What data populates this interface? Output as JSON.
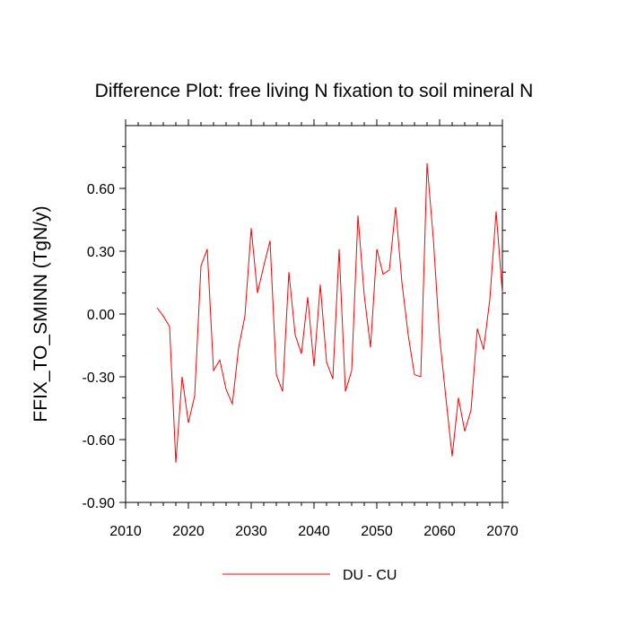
{
  "chart_data": {
    "type": "line",
    "title": "Difference Plot: free living N fixation to soil mineral N",
    "xlabel": "",
    "ylabel": "FFIX_TO_SMINN  (TgN/y)",
    "xlim": [
      2010,
      2070
    ],
    "ylim": [
      -0.9,
      0.9
    ],
    "x_ticks": [
      2010,
      2020,
      2030,
      2040,
      2050,
      2060,
      2070
    ],
    "x_tick_labels": [
      "2010",
      "2020",
      "2030",
      "2040",
      "2050",
      "2060",
      "2070"
    ],
    "y_ticks": [
      -0.9,
      -0.6,
      -0.3,
      0.0,
      0.3,
      0.6
    ],
    "y_tick_labels": [
      "-0.90",
      "-0.60",
      "-0.30",
      "0.00",
      "0.30",
      "0.60"
    ],
    "grid": false,
    "legend_position": "bottom-center",
    "series": [
      {
        "name": "DU - CU",
        "color": "#ff0000",
        "x": [
          2015,
          2016,
          2017,
          2018,
          2019,
          2020,
          2021,
          2022,
          2023,
          2024,
          2025,
          2026,
          2027,
          2028,
          2029,
          2030,
          2031,
          2032,
          2033,
          2034,
          2035,
          2036,
          2037,
          2038,
          2039,
          2040,
          2041,
          2042,
          2043,
          2044,
          2045,
          2046,
          2047,
          2048,
          2049,
          2050,
          2051,
          2052,
          2053,
          2054,
          2055,
          2056,
          2057,
          2058,
          2059,
          2060,
          2061,
          2062,
          2063,
          2064,
          2065,
          2066,
          2067,
          2068,
          2069,
          2070
        ],
        "y": [
          0.03,
          -0.01,
          -0.06,
          -0.71,
          -0.3,
          -0.52,
          -0.39,
          0.23,
          0.31,
          -0.27,
          -0.22,
          -0.36,
          -0.43,
          -0.16,
          -0.01,
          0.41,
          0.1,
          0.23,
          0.35,
          -0.29,
          -0.37,
          0.2,
          -0.1,
          -0.19,
          0.08,
          -0.25,
          0.14,
          -0.23,
          -0.31,
          0.31,
          -0.37,
          -0.27,
          0.47,
          0.09,
          -0.16,
          0.31,
          0.19,
          0.21,
          0.51,
          0.15,
          -0.1,
          -0.29,
          -0.3,
          0.72,
          0.36,
          -0.11,
          -0.4,
          -0.68,
          -0.4,
          -0.56,
          -0.46,
          -0.07,
          -0.17,
          0.07,
          0.49,
          0.1
        ]
      }
    ]
  }
}
